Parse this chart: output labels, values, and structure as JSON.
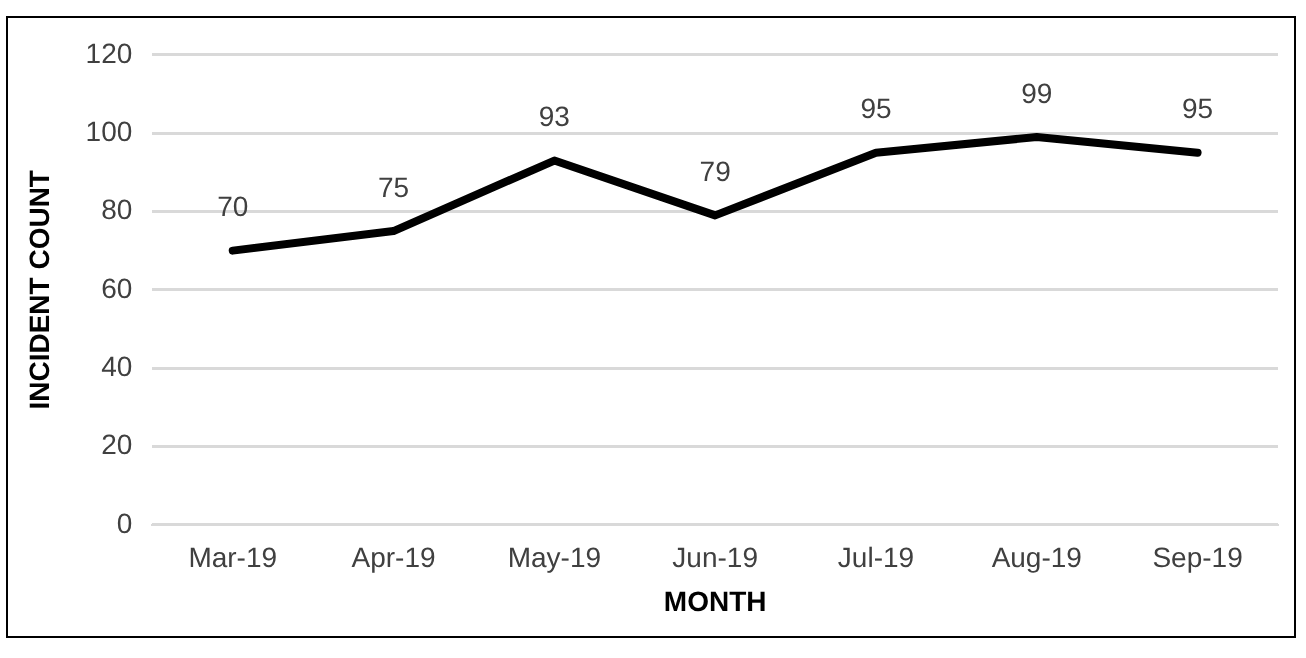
{
  "chart_data": {
    "type": "line",
    "xlabel": "MONTH",
    "ylabel": "INCIDENT COUNT",
    "categories": [
      "Mar-19",
      "Apr-19",
      "May-19",
      "Jun-19",
      "Jul-19",
      "Aug-19",
      "Sep-19"
    ],
    "series": [
      {
        "color": "#000000",
        "values": [
          70,
          75,
          93,
          79,
          95,
          99,
          95
        ]
      }
    ],
    "ylim": [
      0,
      120
    ],
    "yticks": [
      0,
      20,
      40,
      60,
      80,
      100,
      120
    ],
    "grid": "y",
    "legend": false,
    "marker": "none",
    "line_style": "solid",
    "data_labels": true
  }
}
